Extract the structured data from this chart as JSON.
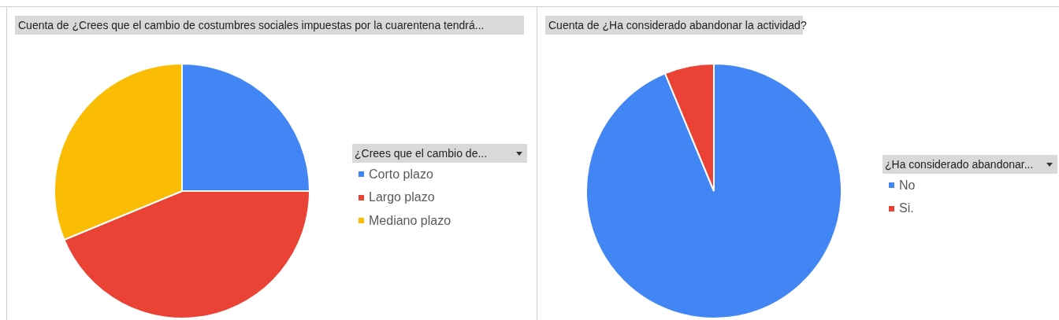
{
  "chart_data": [
    {
      "type": "pie",
      "title": "Cuenta de ¿Crees que el cambio de costumbres sociales impuestas por la cuarentena tendrá...",
      "legend_title": "¿Crees que el cambio de...",
      "categories": [
        "Corto plazo",
        "Largo plazo",
        "Mediano plazo"
      ],
      "values": [
        25,
        43.75,
        31.25
      ],
      "colors": [
        "#4285f4",
        "#ea4335",
        "#fbbc04"
      ],
      "legend": "right"
    },
    {
      "type": "pie",
      "title": "Cuenta de ¿Ha considerado abandonar la actividad?",
      "legend_title": "¿Ha considerado abandonar...",
      "categories": [
        "No",
        "Si."
      ],
      "values": [
        93.75,
        6.25
      ],
      "colors": [
        "#4285f4",
        "#ea4335"
      ],
      "legend": "right"
    }
  ]
}
